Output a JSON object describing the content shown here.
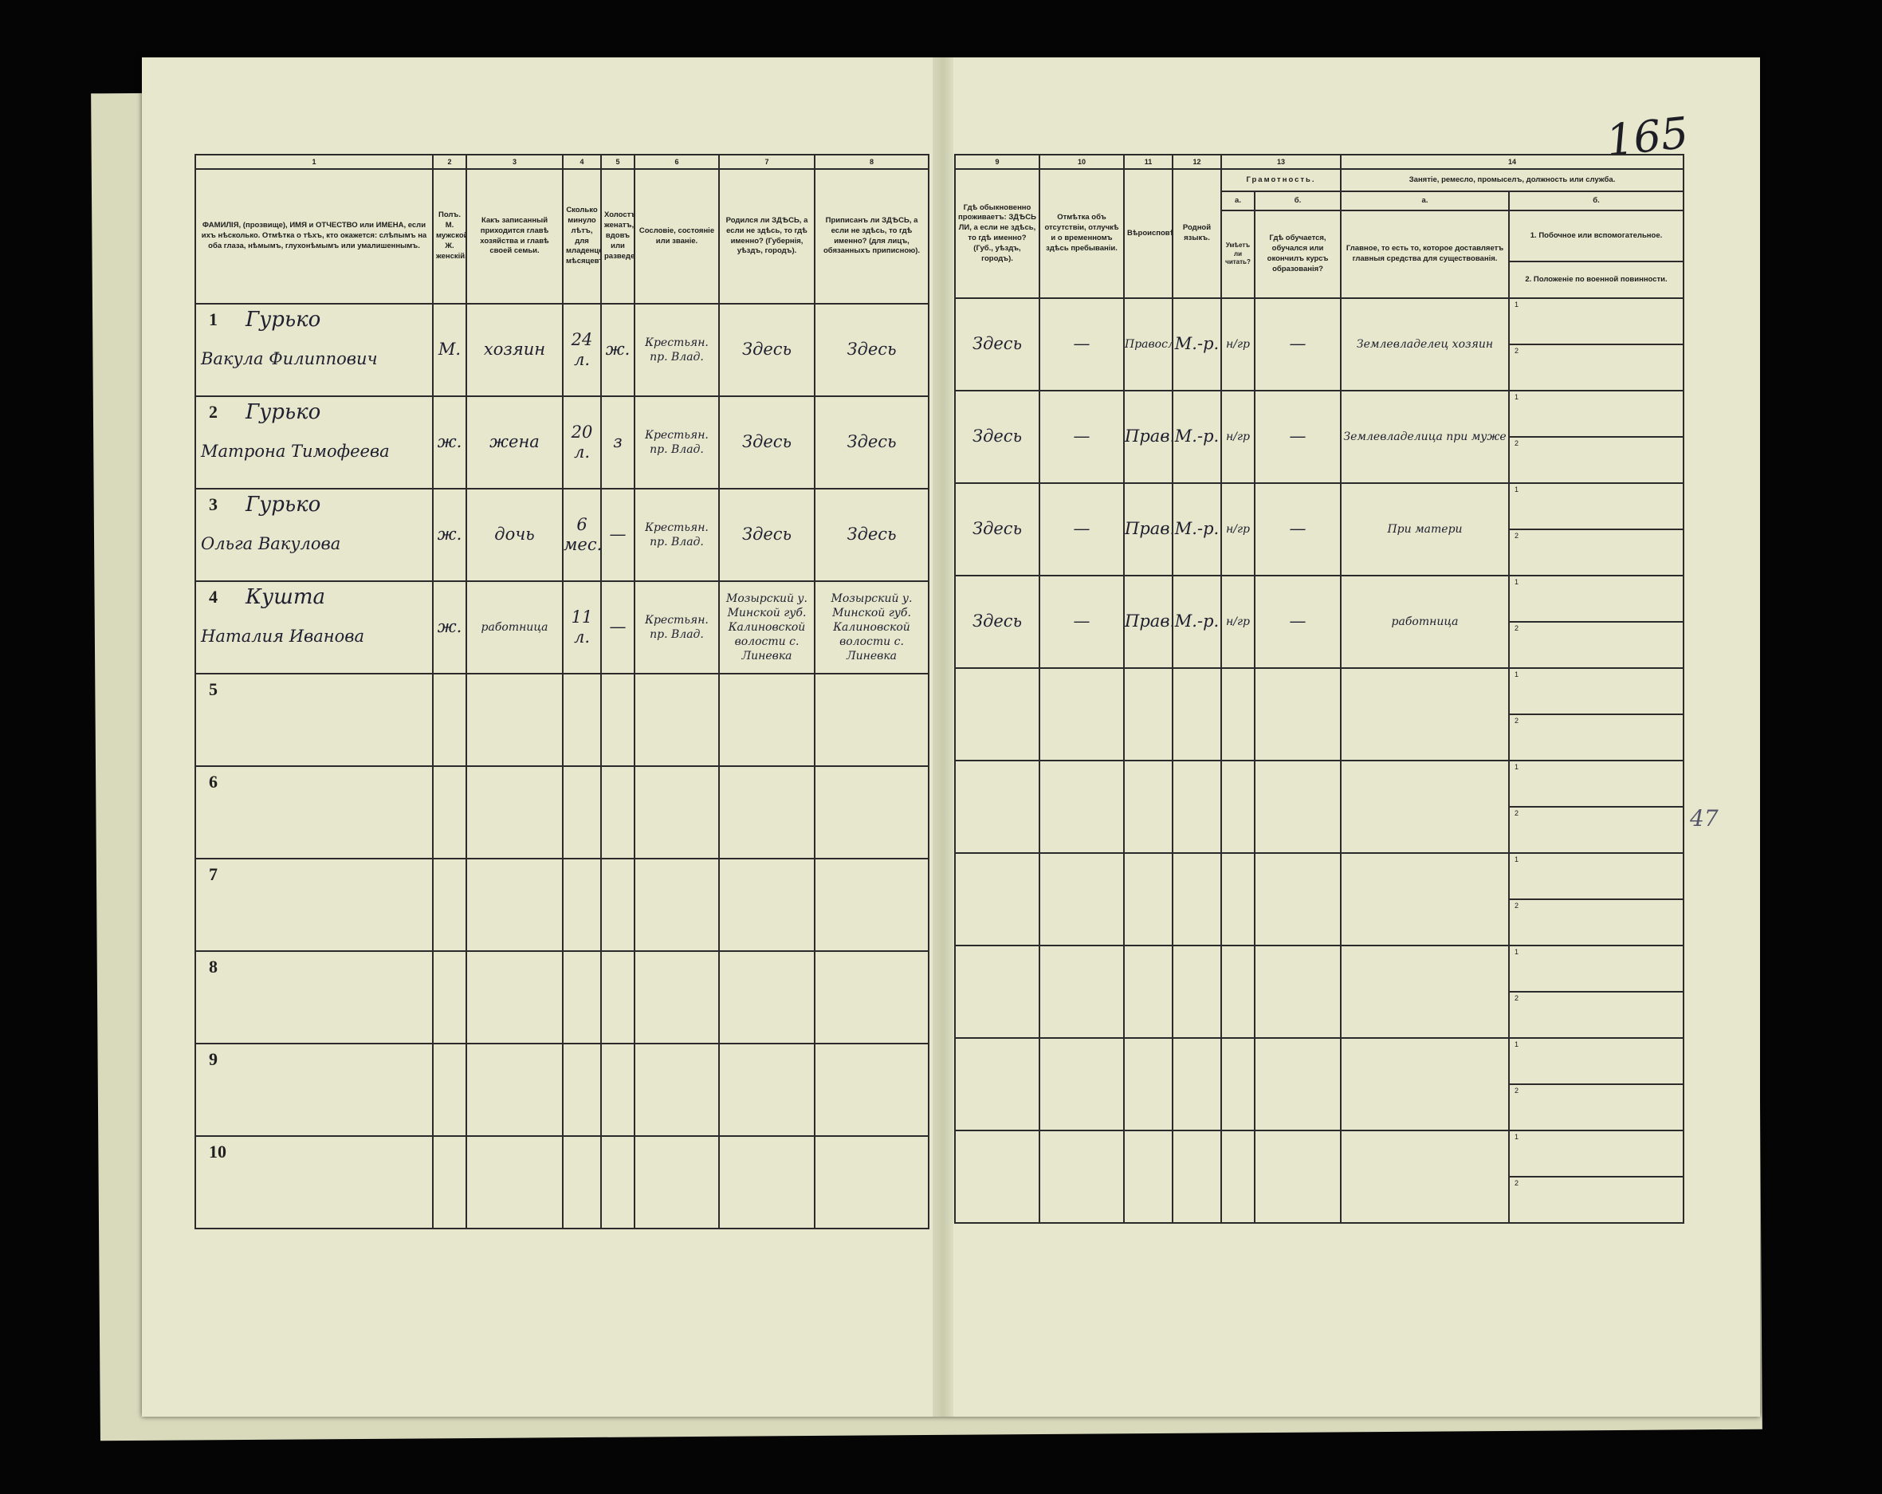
{
  "page": {
    "folio": "165",
    "margin_note": "47"
  },
  "left_header": {
    "numbers": [
      "1",
      "2",
      "3",
      "4",
      "5",
      "6",
      "7",
      "8"
    ],
    "titles": [
      "ФАМИЛІЯ, (прозвище), ИМЯ и ОТЧЕСТВО или ИМЕНА, если ихъ нѣсколько. Отмѣтка о тѣхъ, кто окажется: слѣпымъ на оба глаза, нѣмымъ, глухонѣмымъ или умалишеннымъ.",
      "Полъ. М. мужской, Ж. женскій.",
      "Какъ записанный приходится главѣ хозяйства и главѣ своей семьи.",
      "Сколько минуло лѣтъ, для младенцевъ мѣсяцевъ.",
      "Холостъ, женатъ, вдовъ или разведенъ.",
      "Сословіе, состояніе или званіе.",
      "Родился ли ЗДѢСЬ, а если не здѣсь, то гдѣ именно? (Губернія, уѣздъ, городъ).",
      "Приписанъ ли ЗДѢСЬ, а если не здѣсь, то гдѣ именно? (для лицъ, обязанныхъ приписною)."
    ]
  },
  "right_header": {
    "numbers": [
      "9",
      "10",
      "11",
      "12",
      "13",
      "14"
    ],
    "titles": [
      "Гдѣ обыкновенно проживаетъ: ЗДѢСЬ ЛИ, а если не здѣсь, то гдѣ именно? (Губ., уѣздъ, городъ).",
      "Отмѣтка объ отсутствіи, отлучкѣ и о временномъ здѣсь пребываніи.",
      "Вѣроисповѣданіе.",
      "Родной языкъ."
    ],
    "literacy": {
      "title": "Грамотность.",
      "a": "а.",
      "b": "б.",
      "a_text": "Умѣетъ ли читать?",
      "b_text": "Гдѣ обучается, обучался или окончилъ курсъ образованія?"
    },
    "occupation": {
      "title": "Занятіе, ремесло, промыселъ, должность или служба.",
      "a": "а.",
      "b": "б.",
      "a_text": "Главное, то есть то, которое доставляетъ главныя средства для существованія.",
      "b1": "1. Побочное или вспомогательное.",
      "b2": "2. Положеніе по военной повинности."
    }
  },
  "sub_labels": [
    "1",
    "2"
  ],
  "rows": [
    {
      "no": "1",
      "surname": "Гурько",
      "given": "Вакула Филиппович",
      "sex": "М.",
      "relation": "хозяин",
      "age": "24 л.",
      "marital": "ж.",
      "estate": "Крестьян. пр. Влад.",
      "born": "Здесь",
      "registered": "Здесь",
      "resides": "Здесь",
      "absence": "—",
      "religion": "Правосл.",
      "language": "М.-р.",
      "literate": "н/гр",
      "school": "—",
      "occupation": "Землевладелец хозяин",
      "side": ""
    },
    {
      "no": "2",
      "surname": "Гурько",
      "given": "Матрона Тимофеева",
      "sex": "ж.",
      "relation": "жена",
      "age": "20 л.",
      "marital": "з",
      "estate": "Крестьян. пр. Влад.",
      "born": "Здесь",
      "registered": "Здесь",
      "resides": "Здесь",
      "absence": "—",
      "religion": "Прав.",
      "language": "М.-р.",
      "literate": "н/гр",
      "school": "—",
      "occupation": "Землевладелица при муже",
      "side": ""
    },
    {
      "no": "3",
      "surname": "Гурько",
      "given": "Ольга Вакулова",
      "sex": "ж.",
      "relation": "дочь",
      "age": "6 мес.",
      "marital": "—",
      "estate": "Крестьян. пр. Влад.",
      "born": "Здесь",
      "registered": "Здесь",
      "resides": "Здесь",
      "absence": "—",
      "religion": "Прав.",
      "language": "М.-р.",
      "literate": "н/гр",
      "school": "—",
      "occupation": "При матери",
      "side": ""
    },
    {
      "no": "4",
      "surname": "Кушта",
      "given": "Наталия Иванова",
      "sex": "ж.",
      "relation": "работница",
      "age": "11 л.",
      "marital": "—",
      "estate": "Крестьян. пр. Влад.",
      "born": "Мозырский у. Минской губ. Калиновской волости с. Линевка",
      "registered": "Мозырский у. Минской губ. Калиновской волости с. Линевка",
      "resides": "Здесь",
      "absence": "—",
      "religion": "Прав.",
      "language": "М.-р.",
      "literate": "н/гр",
      "school": "—",
      "occupation": "работница",
      "side": ""
    },
    {
      "no": "5"
    },
    {
      "no": "6"
    },
    {
      "no": "7"
    },
    {
      "no": "8"
    },
    {
      "no": "9"
    },
    {
      "no": "10"
    }
  ]
}
